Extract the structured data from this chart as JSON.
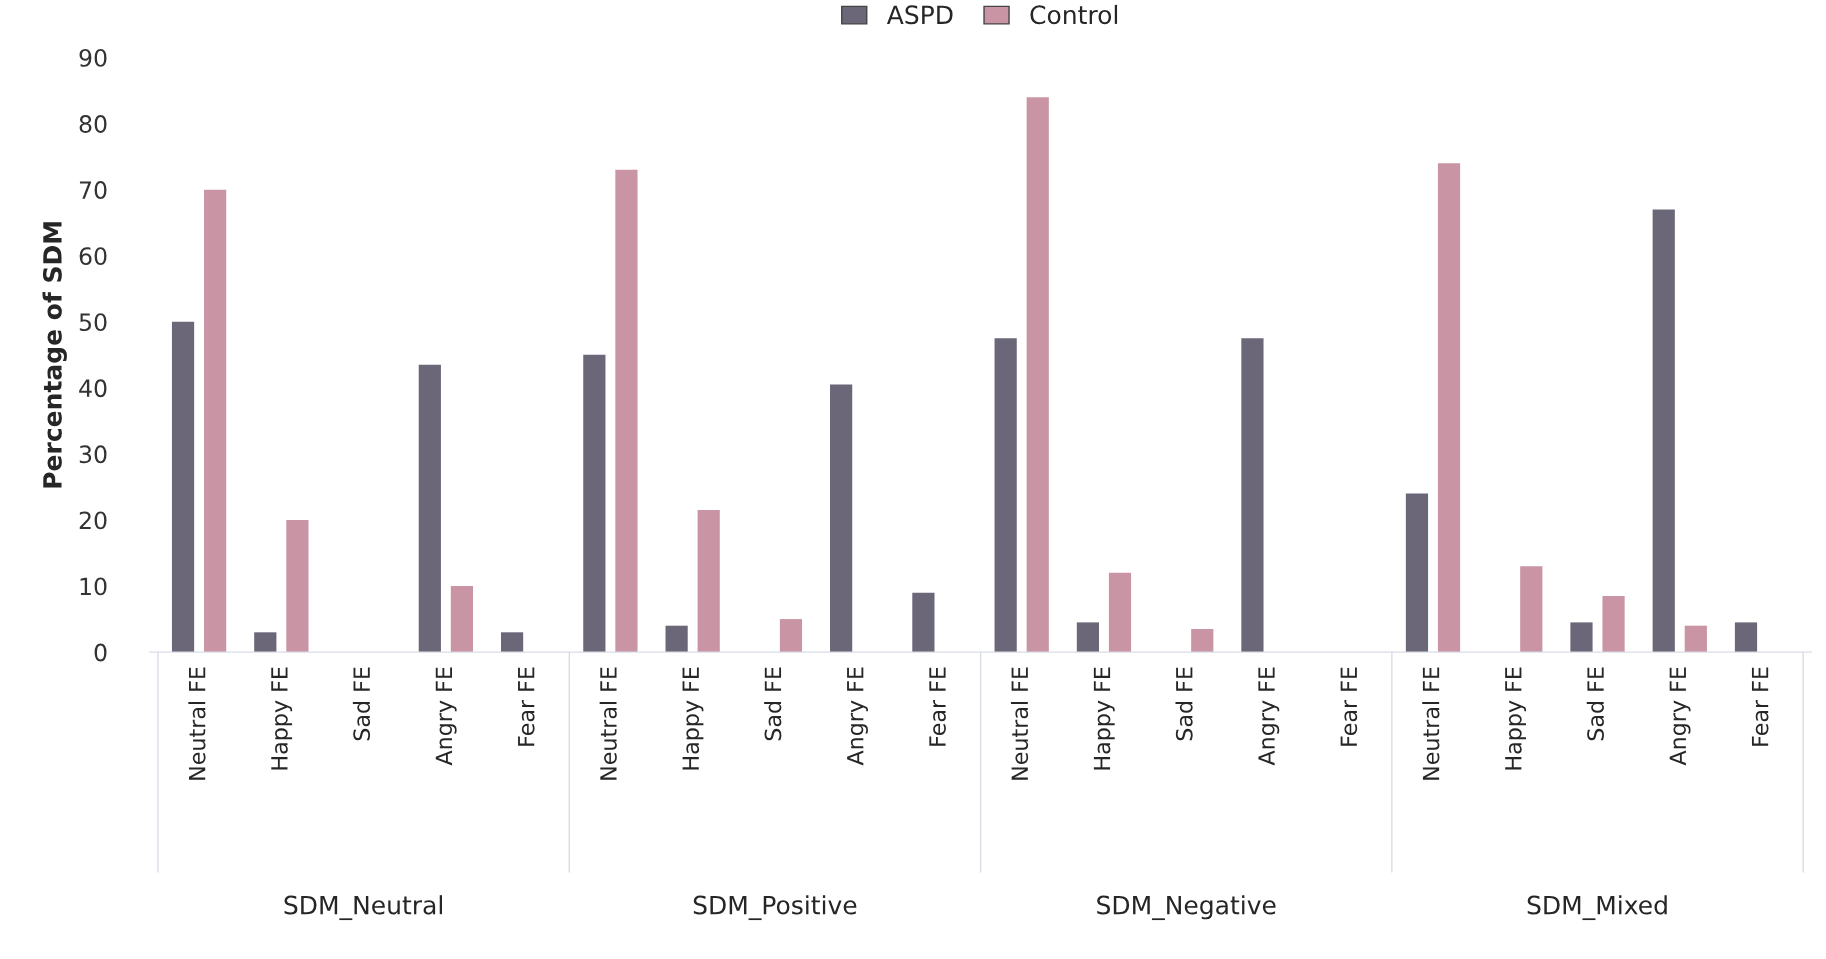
{
  "chart_data": {
    "type": "bar",
    "ylabel": "Percentage of SDM",
    "categories": [
      "Neutral FE",
      "Happy FE",
      "Sad FE",
      "Angry FE",
      "Fear FE",
      "Neutral FE",
      "Happy FE",
      "Sad FE",
      "Angry FE",
      "Fear FE",
      "Neutral FE",
      "Happy FE",
      "Sad FE",
      "Angry FE",
      "Fear FE",
      "Neutral FE",
      "Happy FE",
      "Sad FE",
      "Angry FE",
      "Fear FE"
    ],
    "series": [
      {
        "name": "ASPD",
        "color": "#6b6778",
        "values": [
          50,
          3,
          0,
          43.5,
          3,
          45,
          4,
          0,
          40.5,
          9,
          47.5,
          4.5,
          0,
          47.5,
          0,
          24,
          0,
          4.5,
          67,
          4.5
        ]
      },
      {
        "name": "Control",
        "color": "#c994a3",
        "values": [
          70,
          20,
          0,
          10,
          0,
          73,
          21.5,
          5,
          0,
          0,
          84,
          12,
          3.5,
          0,
          0,
          74,
          13,
          8.5,
          4,
          0
        ]
      }
    ],
    "annotations": [
      "SDM_Neutral",
      "SDM_Positive",
      "SDM_Negative",
      "SDM_Mixed"
    ],
    "ylim": [
      0,
      90
    ],
    "yticks": [
      0,
      10,
      20,
      30,
      40,
      50,
      60,
      70,
      80,
      90
    ],
    "grid": false,
    "legend": "top"
  }
}
